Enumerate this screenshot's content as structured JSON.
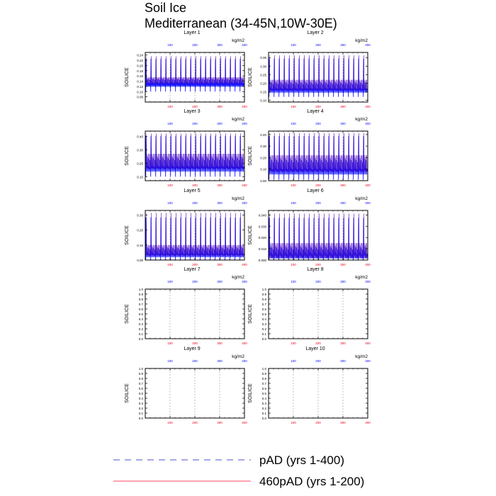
{
  "title": "Soil Ice",
  "subtitle": "Mediterranean (34-45N,10W-30E)",
  "colors": {
    "bottom_axis": "#e8001c",
    "top_axis": "#0000ff",
    "series_pad": "#1a1aff",
    "series_460pad": "#ff4466",
    "frame": "#000000",
    "gridline": "#999999"
  },
  "legend": {
    "position": "bottom-center",
    "items": [
      {
        "label": "pAD (yrs 1-400)",
        "style": "dashed",
        "color": "#5050c8"
      },
      {
        "label": "460pAD (yrs 1-200)",
        "style": "solid",
        "color": "#ff4466"
      }
    ]
  },
  "chart_data": [
    {
      "type": "line",
      "title": "Layer 1",
      "ylabel": "SOILICE",
      "units": "kg/m2",
      "ylim": [
        0.06,
        0.25
      ],
      "yticks": [
        "0.08",
        "0.10",
        "0.12",
        "0.14",
        "0.16",
        "0.18",
        "0.20",
        "0.22",
        "0.24"
      ],
      "xlim": [
        0,
        400
      ],
      "xticks_bottom": [
        "100",
        "200",
        "300",
        "400"
      ],
      "xticks_top": [
        "100",
        "200",
        "300",
        "400"
      ],
      "grid": true,
      "series": [
        {
          "period": 20,
          "peak": 0.24,
          "low": 0.1,
          "base": 0.13,
          "secondary": 0.155
        }
      ]
    },
    {
      "type": "line",
      "title": "Layer 2",
      "ylabel": "SOILICE",
      "units": "kg/m2",
      "ylim": [
        0.09,
        0.38
      ],
      "yticks": [
        "0.10",
        "0.15",
        "0.20",
        "0.25",
        "0.30",
        "0.35"
      ],
      "xlim": [
        0,
        400
      ],
      "xticks_bottom": [
        "100",
        "200",
        "300",
        "400"
      ],
      "xticks_top": [
        "100",
        "200",
        "300",
        "400"
      ],
      "grid": true,
      "series": [
        {
          "period": 20,
          "peak": 0.37,
          "low": 0.12,
          "base": 0.16,
          "secondary": 0.22
        }
      ]
    },
    {
      "type": "line",
      "title": "Layer 3",
      "ylabel": "SOILICE",
      "units": "kg/m2",
      "ylim": [
        0.07,
        0.44
      ],
      "yticks": [
        "0.10",
        "0.20",
        "0.30",
        "0.40"
      ],
      "xlim": [
        0,
        400
      ],
      "xticks_bottom": [
        "100",
        "200",
        "300",
        "400"
      ],
      "xticks_top": [
        "100",
        "200",
        "300",
        "400"
      ],
      "grid": true,
      "series": [
        {
          "period": 20,
          "peak": 0.43,
          "low": 0.1,
          "base": 0.16,
          "secondary": 0.27
        }
      ]
    },
    {
      "type": "line",
      "title": "Layer 4",
      "ylabel": "SOILICE",
      "units": "kg/m2",
      "ylim": [
        0.0,
        0.43
      ],
      "yticks": [
        "0.00",
        "0.10",
        "0.20",
        "0.30",
        "0.40"
      ],
      "xlim": [
        0,
        400
      ],
      "xticks_bottom": [
        "100",
        "200",
        "300",
        "400"
      ],
      "xticks_top": [
        "100",
        "200",
        "300",
        "400"
      ],
      "grid": true,
      "series": [
        {
          "period": 20,
          "peak": 0.42,
          "low": 0.01,
          "base": 0.08,
          "secondary": 0.22
        }
      ]
    },
    {
      "type": "line",
      "title": "Layer 5",
      "ylabel": "SOILICE",
      "units": "kg/m2",
      "ylim": [
        0.0,
        0.33
      ],
      "yticks": [
        "0.00",
        "0.10",
        "0.20",
        "0.30"
      ],
      "xlim": [
        0,
        400
      ],
      "xticks_bottom": [
        "100",
        "200",
        "300",
        "400"
      ],
      "xticks_top": [
        "100",
        "200",
        "300",
        "400"
      ],
      "grid": true,
      "series": [
        {
          "period": 20,
          "peak": 0.32,
          "low": 0.0,
          "base": 0.03,
          "secondary": 0.1
        }
      ]
    },
    {
      "type": "line",
      "title": "Layer 6",
      "ylabel": "SOILICE",
      "units": "kg/m2",
      "ylim": [
        0.0,
        0.044
      ],
      "yticks": [
        "0.000",
        "0.010",
        "0.020",
        "0.030",
        "0.040"
      ],
      "xlim": [
        0,
        400
      ],
      "xticks_bottom": [
        "100",
        "200",
        "300",
        "400"
      ],
      "xticks_top": [
        "100",
        "200",
        "300",
        "400"
      ],
      "grid": true,
      "series": [
        {
          "period": 20,
          "peak": 0.042,
          "low": 0.0,
          "base": 0.002,
          "secondary": 0.015
        }
      ]
    },
    {
      "type": "line",
      "title": "Layer 7",
      "ylabel": "SOILICE",
      "units": "kg/m2",
      "ylim": [
        0.0,
        1.0
      ],
      "yticks": [
        "0.0",
        "0.1",
        "0.2",
        "0.3",
        "0.4",
        "0.5",
        "0.6",
        "0.7",
        "0.8",
        "0.9",
        "1.0"
      ],
      "xlim": [
        0,
        400
      ],
      "xticks_bottom": [
        "100",
        "200",
        "300",
        "400"
      ],
      "xticks_top": [
        "100",
        "200",
        "300",
        "400"
      ],
      "grid": true,
      "series": []
    },
    {
      "type": "line",
      "title": "Layer 8",
      "ylabel": "SOILICE",
      "units": "kg/m2",
      "ylim": [
        0.0,
        1.0
      ],
      "yticks": [
        "0.0",
        "0.1",
        "0.2",
        "0.3",
        "0.4",
        "0.5",
        "0.6",
        "0.7",
        "0.8",
        "0.9",
        "1.0"
      ],
      "xlim": [
        0,
        400
      ],
      "xticks_bottom": [
        "100",
        "200",
        "300",
        "400"
      ],
      "xticks_top": [
        "100",
        "200",
        "300",
        "400"
      ],
      "grid": true,
      "series": []
    },
    {
      "type": "line",
      "title": "Layer 9",
      "ylabel": "SOILICE",
      "units": "kg/m2",
      "ylim": [
        0.0,
        1.0
      ],
      "yticks": [
        "0.0",
        "0.1",
        "0.2",
        "0.3",
        "0.4",
        "0.5",
        "0.6",
        "0.7",
        "0.8",
        "0.9",
        "1.0"
      ],
      "xlim": [
        0,
        400
      ],
      "xticks_bottom": [
        "100",
        "200",
        "300",
        "400"
      ],
      "xticks_top": [
        "100",
        "200",
        "300",
        "400"
      ],
      "grid": true,
      "series": []
    },
    {
      "type": "line",
      "title": "Layer 10",
      "ylabel": "SOILICE",
      "units": "kg/m2",
      "ylim": [
        0.0,
        1.0
      ],
      "yticks": [
        "0.0",
        "0.1",
        "0.2",
        "0.3",
        "0.4",
        "0.5",
        "0.6",
        "0.7",
        "0.8",
        "0.9",
        "1.0"
      ],
      "xlim": [
        0,
        400
      ],
      "xticks_bottom": [
        "100",
        "200",
        "300",
        "400"
      ],
      "xticks_top": [
        "100",
        "200",
        "300",
        "400"
      ],
      "grid": true,
      "series": []
    }
  ]
}
